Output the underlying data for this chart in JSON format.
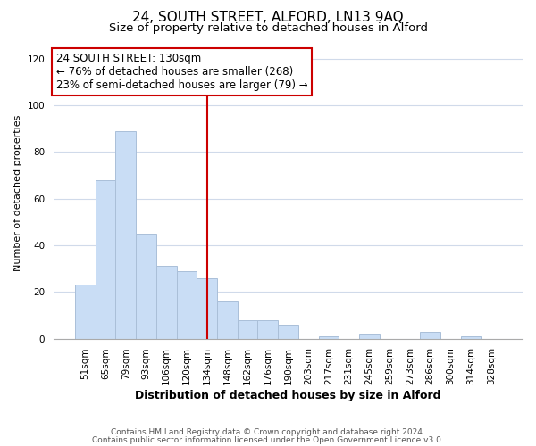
{
  "title": "24, SOUTH STREET, ALFORD, LN13 9AQ",
  "subtitle": "Size of property relative to detached houses in Alford",
  "xlabel": "Distribution of detached houses by size in Alford",
  "ylabel": "Number of detached properties",
  "bar_labels": [
    "51sqm",
    "65sqm",
    "79sqm",
    "93sqm",
    "106sqm",
    "120sqm",
    "134sqm",
    "148sqm",
    "162sqm",
    "176sqm",
    "190sqm",
    "203sqm",
    "217sqm",
    "231sqm",
    "245sqm",
    "259sqm",
    "273sqm",
    "286sqm",
    "300sqm",
    "314sqm",
    "328sqm"
  ],
  "bar_values": [
    23,
    68,
    89,
    45,
    31,
    29,
    26,
    16,
    8,
    8,
    6,
    0,
    1,
    0,
    2,
    0,
    0,
    3,
    0,
    1,
    0
  ],
  "bar_color": "#c9ddf5",
  "bar_edge_color": "#aabfd8",
  "vline_x": 6,
  "vline_color": "#cc0000",
  "annotation_line1": "24 SOUTH STREET: 130sqm",
  "annotation_line2": "← 76% of detached houses are smaller (268)",
  "annotation_line3": "23% of semi-detached houses are larger (79) →",
  "annotation_box_color": "#ffffff",
  "annotation_box_edge": "#cc0000",
  "ylim": [
    0,
    125
  ],
  "yticks": [
    0,
    20,
    40,
    60,
    80,
    100,
    120
  ],
  "footer_line1": "Contains HM Land Registry data © Crown copyright and database right 2024.",
  "footer_line2": "Contains public sector information licensed under the Open Government Licence v3.0.",
  "background_color": "#ffffff",
  "grid_color": "#d0daea",
  "title_fontsize": 11,
  "subtitle_fontsize": 9.5,
  "xlabel_fontsize": 9,
  "ylabel_fontsize": 8,
  "tick_fontsize": 7.5,
  "footer_fontsize": 6.5,
  "annotation_fontsize": 8.5
}
